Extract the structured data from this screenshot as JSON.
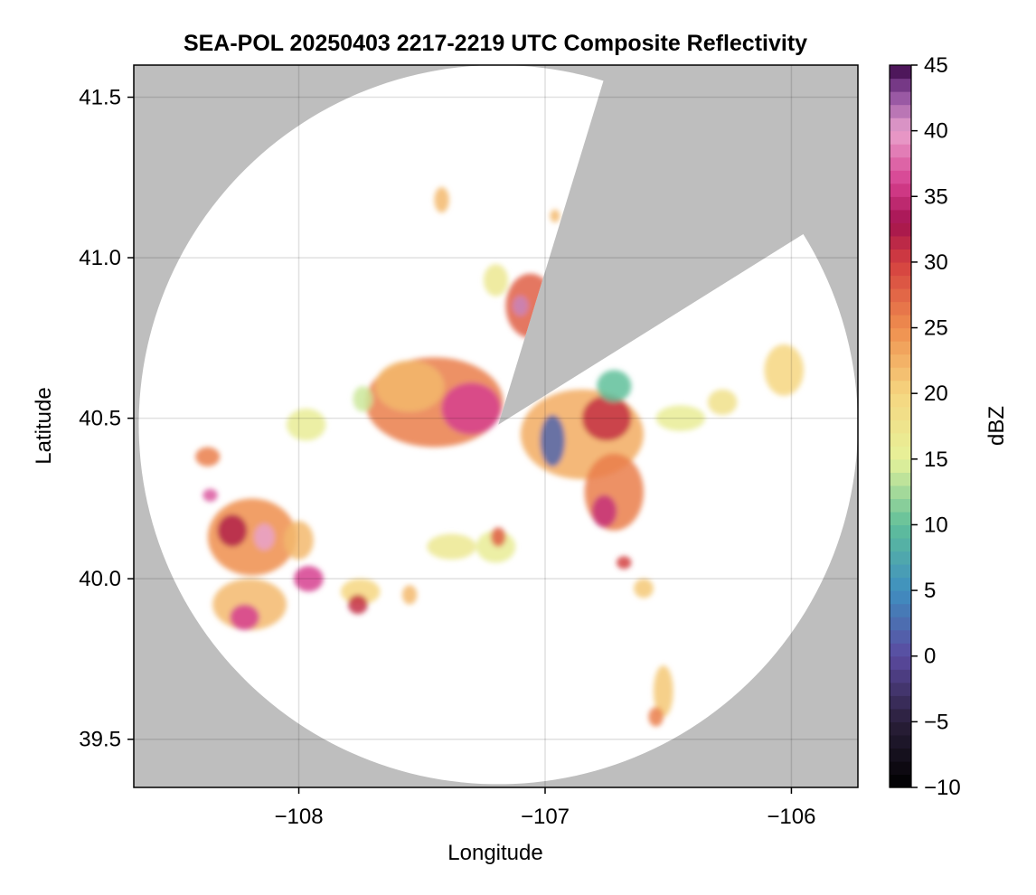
{
  "chart_data": {
    "type": "heatmap",
    "title": "SEA-POL 20250403 2217-2219 UTC Composite Reflectivity",
    "xlabel": "Longitude",
    "ylabel": "Latitude",
    "xlim": [
      -108.67,
      -105.73
    ],
    "ylim": [
      39.35,
      41.6
    ],
    "xticks": [
      -108,
      -107,
      -106
    ],
    "xtick_labels": [
      "−108",
      "−107",
      "−106"
    ],
    "yticks": [
      39.5,
      40.0,
      40.5,
      41.0,
      41.5
    ],
    "ytick_labels": [
      "39.5",
      "40.0",
      "40.5",
      "41.0",
      "41.5"
    ],
    "grid": true,
    "background_color": "#bebebe",
    "radar_center": {
      "lon": -107.19,
      "lat": 40.48
    },
    "radar_range_deg_lat": 1.12,
    "blocked_sector_azimuth_deg": [
      17,
      58
    ],
    "colorbar": {
      "label": "dBZ",
      "range": [
        -10,
        45
      ],
      "ticks": [
        -10,
        -5,
        0,
        5,
        10,
        15,
        20,
        25,
        30,
        35,
        40,
        45
      ],
      "tick_labels": [
        "−10",
        "−5",
        "0",
        "5",
        "10",
        "15",
        "20",
        "25",
        "30",
        "35",
        "40",
        "45"
      ],
      "colormap": "Spectral_r (extended)"
    },
    "echo_cells": [
      {
        "lon": -107.45,
        "lat": 40.55,
        "rlon": 0.28,
        "rlat": 0.14,
        "dbz": 26
      },
      {
        "lon": -107.3,
        "lat": 40.53,
        "rlon": 0.12,
        "rlat": 0.08,
        "dbz": 36
      },
      {
        "lon": -107.55,
        "lat": 40.6,
        "rlon": 0.14,
        "rlat": 0.08,
        "dbz": 22
      },
      {
        "lon": -106.85,
        "lat": 40.45,
        "rlon": 0.25,
        "rlat": 0.14,
        "dbz": 23
      },
      {
        "lon": -106.75,
        "lat": 40.5,
        "rlon": 0.1,
        "rlat": 0.07,
        "dbz": 31
      },
      {
        "lon": -106.97,
        "lat": 40.43,
        "rlon": 0.05,
        "rlat": 0.08,
        "dbz": 2
      },
      {
        "lon": -106.72,
        "lat": 40.27,
        "rlon": 0.12,
        "rlat": 0.12,
        "dbz": 26
      },
      {
        "lon": -106.76,
        "lat": 40.21,
        "rlon": 0.05,
        "rlat": 0.05,
        "dbz": 35
      },
      {
        "lon": -106.72,
        "lat": 40.6,
        "rlon": 0.07,
        "rlat": 0.05,
        "dbz": 10
      },
      {
        "lon": -107.06,
        "lat": 40.85,
        "rlon": 0.1,
        "rlat": 0.1,
        "dbz": 28
      },
      {
        "lon": -107.1,
        "lat": 40.85,
        "rlon": 0.03,
        "rlat": 0.03,
        "dbz": 41
      },
      {
        "lon": -107.2,
        "lat": 40.93,
        "rlon": 0.05,
        "rlat": 0.05,
        "dbz": 17
      },
      {
        "lon": -108.19,
        "lat": 40.13,
        "rlon": 0.18,
        "rlat": 0.12,
        "dbz": 25
      },
      {
        "lon": -108.27,
        "lat": 40.15,
        "rlon": 0.06,
        "rlat": 0.05,
        "dbz": 32
      },
      {
        "lon": -108.14,
        "lat": 40.13,
        "rlon": 0.04,
        "rlat": 0.04,
        "dbz": 40
      },
      {
        "lon": -108.0,
        "lat": 40.12,
        "rlon": 0.06,
        "rlat": 0.06,
        "dbz": 22
      },
      {
        "lon": -107.96,
        "lat": 40.0,
        "rlon": 0.06,
        "rlat": 0.04,
        "dbz": 36
      },
      {
        "lon": -108.2,
        "lat": 39.92,
        "rlon": 0.15,
        "rlat": 0.08,
        "dbz": 22
      },
      {
        "lon": -108.22,
        "lat": 39.88,
        "rlon": 0.06,
        "rlat": 0.04,
        "dbz": 36
      },
      {
        "lon": -108.37,
        "lat": 40.38,
        "rlon": 0.05,
        "rlat": 0.03,
        "dbz": 26
      },
      {
        "lon": -108.36,
        "lat": 40.26,
        "rlon": 0.03,
        "rlat": 0.02,
        "dbz": 37
      },
      {
        "lon": -107.97,
        "lat": 40.48,
        "rlon": 0.08,
        "rlat": 0.05,
        "dbz": 16
      },
      {
        "lon": -107.75,
        "lat": 39.96,
        "rlon": 0.08,
        "rlat": 0.04,
        "dbz": 20
      },
      {
        "lon": -107.76,
        "lat": 39.92,
        "rlon": 0.04,
        "rlat": 0.03,
        "dbz": 31
      },
      {
        "lon": -107.55,
        "lat": 39.95,
        "rlon": 0.03,
        "rlat": 0.03,
        "dbz": 22
      },
      {
        "lon": -107.38,
        "lat": 40.1,
        "rlon": 0.1,
        "rlat": 0.04,
        "dbz": 17
      },
      {
        "lon": -107.2,
        "lat": 40.1,
        "rlon": 0.08,
        "rlat": 0.05,
        "dbz": 16
      },
      {
        "lon": -107.19,
        "lat": 40.13,
        "rlon": 0.03,
        "rlat": 0.03,
        "dbz": 28
      },
      {
        "lon": -106.45,
        "lat": 40.5,
        "rlon": 0.1,
        "rlat": 0.04,
        "dbz": 16
      },
      {
        "lon": -106.28,
        "lat": 40.55,
        "rlon": 0.06,
        "rlat": 0.04,
        "dbz": 18
      },
      {
        "lon": -106.03,
        "lat": 40.65,
        "rlon": 0.08,
        "rlat": 0.08,
        "dbz": 20
      },
      {
        "lon": -106.52,
        "lat": 39.65,
        "rlon": 0.04,
        "rlat": 0.08,
        "dbz": 21
      },
      {
        "lon": -106.55,
        "lat": 39.57,
        "rlon": 0.03,
        "rlat": 0.03,
        "dbz": 26
      },
      {
        "lon": -106.6,
        "lat": 39.97,
        "rlon": 0.04,
        "rlat": 0.03,
        "dbz": 21
      },
      {
        "lon": -106.68,
        "lat": 40.05,
        "rlon": 0.03,
        "rlat": 0.02,
        "dbz": 30
      },
      {
        "lon": -107.42,
        "lat": 41.18,
        "rlon": 0.03,
        "rlat": 0.04,
        "dbz": 22
      },
      {
        "lon": -106.96,
        "lat": 41.13,
        "rlon": 0.02,
        "rlat": 0.02,
        "dbz": 22
      },
      {
        "lon": -107.74,
        "lat": 40.56,
        "rlon": 0.04,
        "rlat": 0.04,
        "dbz": 14
      }
    ]
  }
}
